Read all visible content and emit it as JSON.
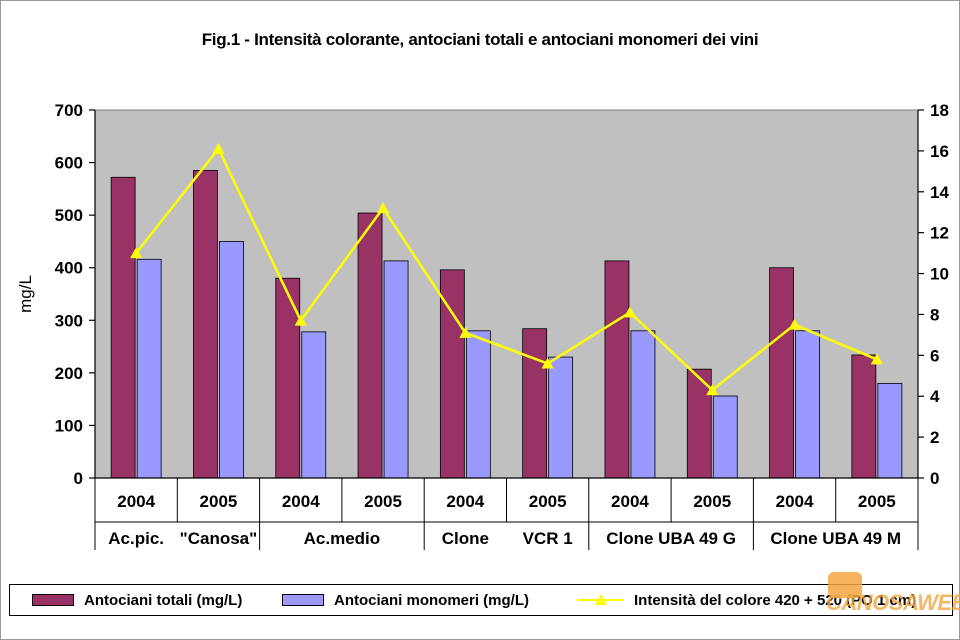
{
  "chart_data": {
    "type": "bar",
    "title": "Fig.1 - Intensità colorante, antociani totali e antociani monomeri dei vini",
    "ylabel": "mg/L",
    "ylim": [
      0,
      700
    ],
    "y_ticks": [
      0,
      100,
      200,
      300,
      400,
      500,
      600,
      700
    ],
    "y2lim": [
      0,
      18
    ],
    "y2_ticks": [
      0,
      2,
      4,
      6,
      8,
      10,
      12,
      14,
      16,
      18
    ],
    "grid": false,
    "legend_position": "bottom",
    "categories": [
      "2004",
      "2005",
      "2004",
      "2005",
      "2004",
      "2005",
      "2004",
      "2005",
      "2004",
      "2005"
    ],
    "groups": [
      {
        "label_parts": [
          "Ac.pic.",
          "\"Canosa\""
        ]
      },
      {
        "label_parts": [
          "Ac.medio"
        ]
      },
      {
        "label_parts": [
          "Clone",
          "VCR 1"
        ]
      },
      {
        "label_parts": [
          "Clone UBA 49 G"
        ]
      },
      {
        "label_parts": [
          "Clone UBA 49 M"
        ]
      }
    ],
    "series": [
      {
        "name": "Antociani totali (mg/L)",
        "type": "bar",
        "axis": "left",
        "color": "#993366",
        "values": [
          572,
          585,
          380,
          504,
          396,
          284,
          413,
          207,
          400,
          234
        ]
      },
      {
        "name": "Antociani monomeri (mg/L)",
        "type": "bar",
        "axis": "left",
        "color": "#9999ff",
        "values": [
          416,
          450,
          278,
          413,
          280,
          230,
          280,
          156,
          280,
          180
        ]
      },
      {
        "name": "Intensità del colore 420 + 520 (PO 1 cm)",
        "type": "line",
        "axis": "right",
        "color": "#ffff00",
        "values": [
          11.0,
          16.1,
          7.7,
          13.2,
          7.1,
          5.6,
          8.1,
          4.3,
          7.5,
          5.8
        ]
      }
    ]
  },
  "legend": {
    "item_1": "Antociani totali (mg/L)",
    "item_2": "Antociani monomeri (mg/L)",
    "item_3": "Intensità del colore 420 + 520 (PO 1 cm)"
  },
  "watermark": {
    "text": "CANOSAWEB",
    "color": "#f2a640"
  },
  "colors": {
    "plot_area": "#c0c0c0",
    "axis": "#000000"
  }
}
